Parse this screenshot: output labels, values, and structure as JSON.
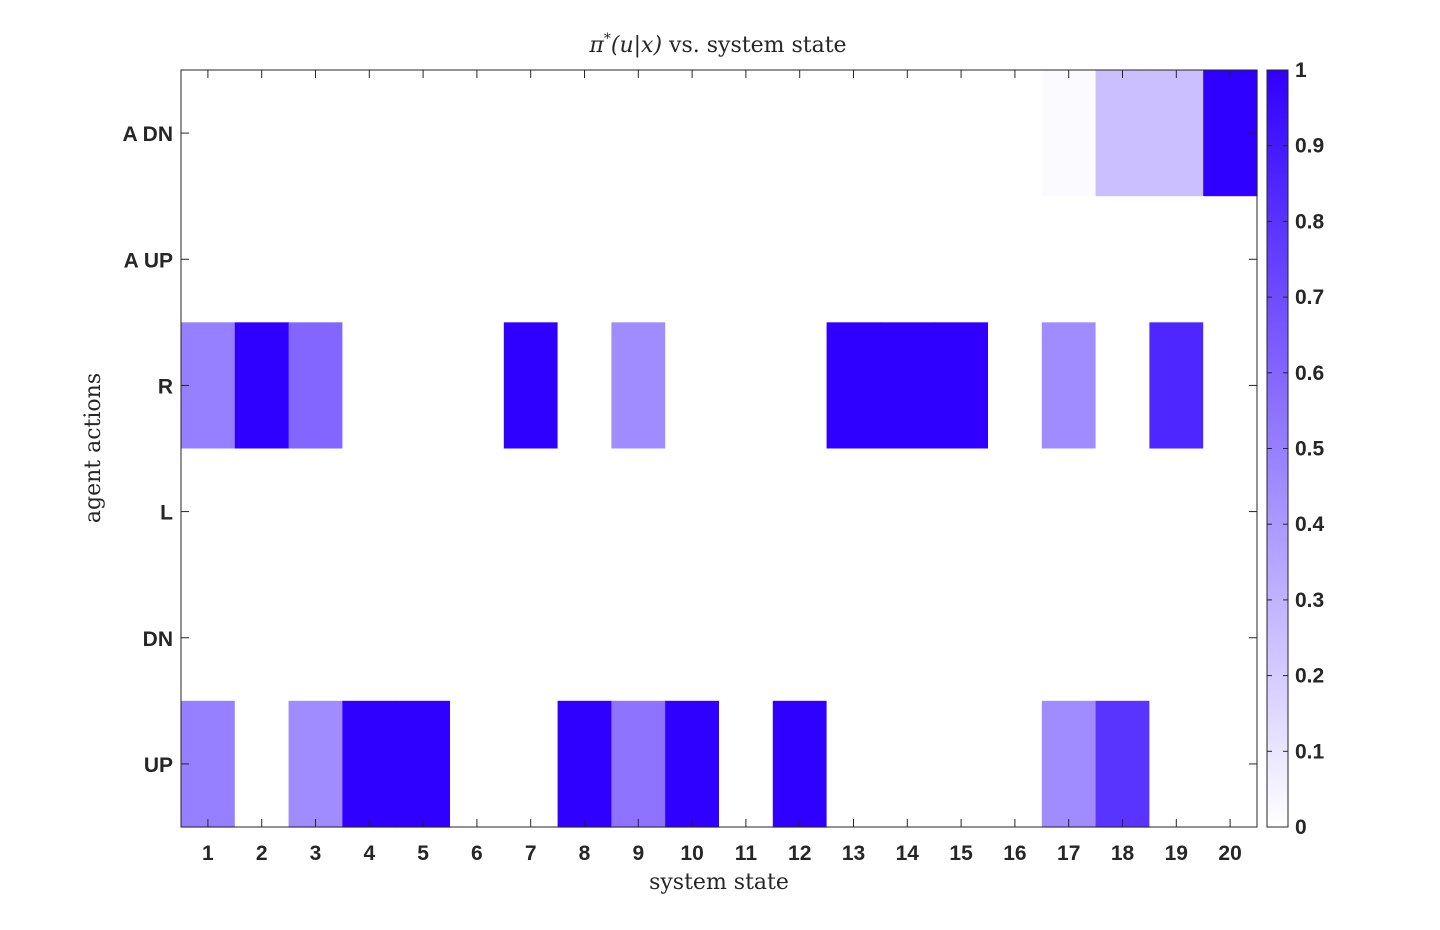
{
  "chart_data": {
    "type": "heatmap",
    "title_parts": {
      "pi": "π",
      "star": "*",
      "func": "(u|x)",
      "rest": " vs. system state"
    },
    "xlabel": "system state",
    "ylabel": "agent actions",
    "x": [
      "1",
      "2",
      "3",
      "4",
      "5",
      "6",
      "7",
      "8",
      "9",
      "10",
      "11",
      "12",
      "13",
      "14",
      "15",
      "16",
      "17",
      "18",
      "19",
      "20"
    ],
    "y": [
      "A DN",
      "A UP",
      "R",
      "L",
      "DN",
      "UP"
    ],
    "values": [
      [
        0,
        0,
        0,
        0,
        0,
        0,
        0,
        0,
        0,
        0,
        0,
        0,
        0,
        0,
        0,
        0,
        0.02,
        0.25,
        0.25,
        1.0
      ],
      [
        0,
        0,
        0,
        0,
        0,
        0,
        0,
        0,
        0,
        0,
        0,
        0,
        0,
        0,
        0,
        0,
        0,
        0,
        0,
        0
      ],
      [
        0.5,
        1.0,
        0.6,
        0,
        0,
        0,
        1.0,
        0,
        0.45,
        0,
        0,
        0,
        1.0,
        1.0,
        1.0,
        0,
        0.45,
        0,
        0.85,
        0
      ],
      [
        0,
        0,
        0,
        0,
        0,
        0,
        0,
        0,
        0,
        0,
        0,
        0,
        0,
        0,
        0,
        0,
        0,
        0,
        0,
        0
      ],
      [
        0,
        0,
        0,
        0,
        0,
        0,
        0,
        0,
        0,
        0,
        0,
        0,
        0,
        0,
        0,
        0,
        0,
        0,
        0,
        0
      ],
      [
        0.5,
        0,
        0.45,
        1.0,
        1.0,
        0,
        0,
        1.0,
        0.55,
        1.0,
        0,
        1.0,
        0,
        0,
        0,
        0,
        0.45,
        0.8,
        0,
        0
      ]
    ],
    "colormap": {
      "low": "#ffffff",
      "high": "#2f00ff"
    },
    "colorbar": {
      "range": [
        0,
        1
      ],
      "ticks": [
        "0",
        "0.1",
        "0.2",
        "0.3",
        "0.4",
        "0.5",
        "0.6",
        "0.7",
        "0.8",
        "0.9",
        "1"
      ]
    }
  }
}
